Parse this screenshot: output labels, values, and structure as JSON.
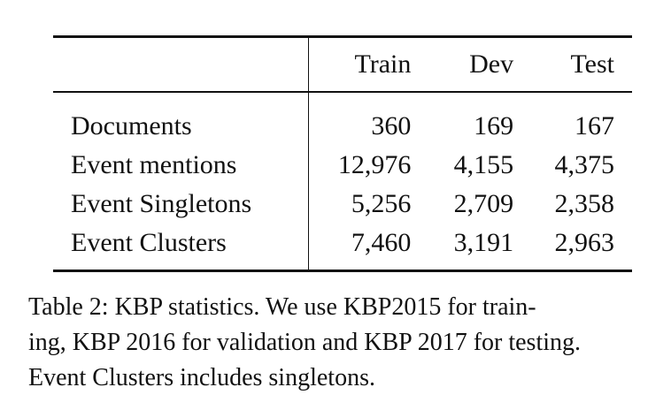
{
  "table": {
    "columns": [
      "",
      "Train",
      "Dev",
      "Test"
    ],
    "rows": [
      {
        "label": "Documents",
        "train": "360",
        "dev": "169",
        "test": "167"
      },
      {
        "label": "Event mentions",
        "train": "12,976",
        "dev": "4,155",
        "test": "4,375"
      },
      {
        "label": "Event Singletons",
        "train": "5,256",
        "dev": "2,709",
        "test": "2,358"
      },
      {
        "label": "Event Clusters",
        "train": "7,460",
        "dev": "3,191",
        "test": "2,963"
      }
    ]
  },
  "caption": {
    "line1": "Table 2:  KBP statistics.  We use KBP2015 for train-",
    "line2": "ing, KBP 2016 for validation and KBP 2017 for testing.",
    "line3": "Event Clusters includes singletons."
  }
}
